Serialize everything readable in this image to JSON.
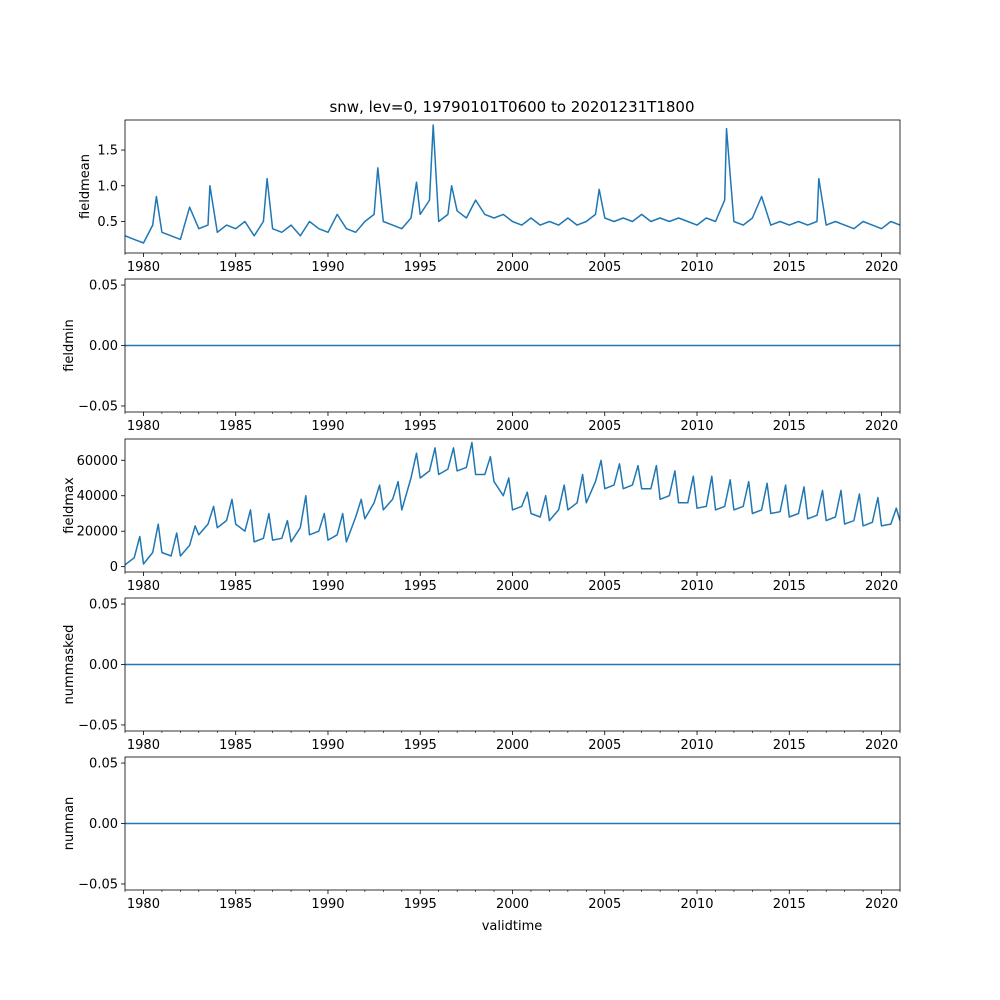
{
  "figure": {
    "title": "snw, lev=0, 19790101T0600 to 20201231T1800",
    "xlabel": "validtime",
    "line_color": "#1f77b4"
  },
  "chart_data": [
    {
      "type": "line",
      "name": "fieldmean",
      "ylabel": "fieldmean",
      "xlim": [
        1979.0,
        2021.0
      ],
      "ylim": [
        0.06,
        1.92
      ],
      "x_ticks": [
        "1980",
        "1985",
        "1990",
        "1995",
        "2000",
        "2005",
        "2010",
        "2015",
        "2020"
      ],
      "y_ticks": [
        "0.5",
        "1.0",
        "1.5"
      ],
      "x": [
        1979.0,
        1979.5,
        1980.0,
        1980.5,
        1980.7,
        1981.0,
        1981.5,
        1982.0,
        1982.5,
        1983.0,
        1983.5,
        1983.6,
        1984.0,
        1984.5,
        1985.0,
        1985.5,
        1986.0,
        1986.5,
        1986.7,
        1987.0,
        1987.5,
        1988.0,
        1988.5,
        1989.0,
        1989.5,
        1990.0,
        1990.5,
        1991.0,
        1991.5,
        1992.0,
        1992.5,
        1992.7,
        1993.0,
        1993.5,
        1994.0,
        1994.5,
        1994.8,
        1995.0,
        1995.5,
        1995.7,
        1996.0,
        1996.5,
        1996.7,
        1997.0,
        1997.5,
        1998.0,
        1998.5,
        1999.0,
        1999.5,
        2000.0,
        2000.5,
        2001.0,
        2001.5,
        2002.0,
        2002.5,
        2003.0,
        2003.5,
        2004.0,
        2004.5,
        2004.7,
        2005.0,
        2005.5,
        2006.0,
        2006.5,
        2007.0,
        2007.5,
        2008.0,
        2008.5,
        2009.0,
        2009.5,
        2010.0,
        2010.5,
        2011.0,
        2011.5,
        2011.6,
        2012.0,
        2012.5,
        2013.0,
        2013.5,
        2014.0,
        2014.5,
        2015.0,
        2015.5,
        2016.0,
        2016.5,
        2016.6,
        2017.0,
        2017.5,
        2018.0,
        2018.5,
        2019.0,
        2019.5,
        2020.0,
        2020.5,
        2021.0
      ],
      "values": [
        0.3,
        0.25,
        0.2,
        0.45,
        0.85,
        0.35,
        0.3,
        0.25,
        0.7,
        0.4,
        0.45,
        1.0,
        0.35,
        0.45,
        0.4,
        0.5,
        0.3,
        0.5,
        1.1,
        0.4,
        0.35,
        0.45,
        0.3,
        0.5,
        0.4,
        0.35,
        0.6,
        0.4,
        0.35,
        0.5,
        0.6,
        1.25,
        0.5,
        0.45,
        0.4,
        0.55,
        1.05,
        0.6,
        0.8,
        1.85,
        0.5,
        0.6,
        1.0,
        0.65,
        0.55,
        0.8,
        0.6,
        0.55,
        0.6,
        0.5,
        0.45,
        0.55,
        0.45,
        0.5,
        0.45,
        0.55,
        0.45,
        0.5,
        0.6,
        0.95,
        0.55,
        0.5,
        0.55,
        0.5,
        0.6,
        0.5,
        0.55,
        0.5,
        0.55,
        0.5,
        0.45,
        0.55,
        0.5,
        0.8,
        1.8,
        0.5,
        0.45,
        0.55,
        0.85,
        0.45,
        0.5,
        0.45,
        0.5,
        0.45,
        0.5,
        1.1,
        0.45,
        0.5,
        0.45,
        0.4,
        0.5,
        0.45,
        0.4,
        0.5,
        0.45
      ]
    },
    {
      "type": "line",
      "name": "fieldmin",
      "ylabel": "fieldmin",
      "xlim": [
        1979.0,
        2021.0
      ],
      "ylim": [
        -0.055,
        0.055
      ],
      "x_ticks": [
        "1980",
        "1985",
        "1990",
        "1995",
        "2000",
        "2005",
        "2010",
        "2015",
        "2020"
      ],
      "y_ticks": [
        "−0.05",
        "0.00",
        "0.05"
      ],
      "x": [
        1979.0,
        2021.0
      ],
      "values": [
        0,
        0
      ]
    },
    {
      "type": "line",
      "name": "fieldmax",
      "ylabel": "fieldmax",
      "xlim": [
        1979.0,
        2021.0
      ],
      "ylim": [
        -3000,
        72000
      ],
      "x_ticks": [
        "1980",
        "1985",
        "1990",
        "1995",
        "2000",
        "2005",
        "2010",
        "2015",
        "2020"
      ],
      "y_ticks": [
        "0",
        "20000",
        "40000",
        "60000"
      ],
      "x": [
        1979.0,
        1979.5,
        1979.8,
        1980.0,
        1980.5,
        1980.8,
        1981.0,
        1981.5,
        1981.8,
        1982.0,
        1982.5,
        1982.8,
        1983.0,
        1983.5,
        1983.8,
        1984.0,
        1984.5,
        1984.8,
        1985.0,
        1985.5,
        1985.8,
        1986.0,
        1986.5,
        1986.8,
        1987.0,
        1987.5,
        1987.8,
        1988.0,
        1988.5,
        1988.8,
        1989.0,
        1989.5,
        1989.8,
        1990.0,
        1990.5,
        1990.8,
        1991.0,
        1991.5,
        1991.8,
        1992.0,
        1992.5,
        1992.8,
        1993.0,
        1993.5,
        1993.8,
        1994.0,
        1994.5,
        1994.8,
        1995.0,
        1995.5,
        1995.8,
        1996.0,
        1996.5,
        1996.8,
        1997.0,
        1997.5,
        1997.8,
        1998.0,
        1998.5,
        1998.8,
        1999.0,
        1999.5,
        1999.8,
        2000.0,
        2000.5,
        2000.8,
        2001.0,
        2001.5,
        2001.8,
        2002.0,
        2002.5,
        2002.8,
        2003.0,
        2003.5,
        2003.8,
        2004.0,
        2004.5,
        2004.8,
        2005.0,
        2005.5,
        2005.8,
        2006.0,
        2006.5,
        2006.8,
        2007.0,
        2007.5,
        2007.8,
        2008.0,
        2008.5,
        2008.8,
        2009.0,
        2009.5,
        2009.8,
        2010.0,
        2010.5,
        2010.8,
        2011.0,
        2011.5,
        2011.8,
        2012.0,
        2012.5,
        2012.8,
        2013.0,
        2013.5,
        2013.8,
        2014.0,
        2014.5,
        2014.8,
        2015.0,
        2015.5,
        2015.8,
        2016.0,
        2016.5,
        2016.8,
        2017.0,
        2017.5,
        2017.8,
        2018.0,
        2018.5,
        2018.8,
        2019.0,
        2019.5,
        2019.8,
        2020.0,
        2020.5,
        2020.8,
        2021.0
      ],
      "values": [
        1000,
        5000,
        17000,
        1500,
        8000,
        24000,
        8000,
        6000,
        19000,
        6000,
        12000,
        23000,
        18000,
        24000,
        34000,
        22000,
        26000,
        38000,
        24000,
        20000,
        32000,
        14000,
        16000,
        30000,
        15000,
        16000,
        26000,
        14000,
        22000,
        40000,
        18000,
        20000,
        30000,
        15000,
        18000,
        30000,
        14000,
        28000,
        38000,
        27000,
        36000,
        46000,
        32000,
        38000,
        48000,
        32000,
        50000,
        64000,
        50000,
        54000,
        67000,
        52000,
        55000,
        67000,
        54000,
        56000,
        70000,
        52000,
        52000,
        62000,
        48000,
        40000,
        50000,
        32000,
        34000,
        42000,
        30000,
        28000,
        40000,
        26000,
        32000,
        46000,
        32000,
        36000,
        52000,
        36000,
        48000,
        60000,
        44000,
        46000,
        58000,
        44000,
        46000,
        57000,
        44000,
        44000,
        57000,
        38000,
        40000,
        54000,
        36000,
        36000,
        51000,
        33000,
        34000,
        51000,
        32000,
        34000,
        49000,
        32000,
        34000,
        48000,
        30000,
        32000,
        47000,
        30000,
        31000,
        46000,
        28000,
        30000,
        45000,
        27000,
        29000,
        43000,
        26000,
        28000,
        43000,
        24000,
        26000,
        41000,
        23000,
        25000,
        39000,
        23000,
        24000,
        33000,
        26000
      ]
    },
    {
      "type": "line",
      "name": "nummasked",
      "ylabel": "nummasked",
      "xlim": [
        1979.0,
        2021.0
      ],
      "ylim": [
        -0.055,
        0.055
      ],
      "x_ticks": [
        "1980",
        "1985",
        "1990",
        "1995",
        "2000",
        "2005",
        "2010",
        "2015",
        "2020"
      ],
      "y_ticks": [
        "−0.05",
        "0.00",
        "0.05"
      ],
      "x": [
        1979.0,
        2021.0
      ],
      "values": [
        0,
        0
      ]
    },
    {
      "type": "line",
      "name": "numnan",
      "ylabel": "numnan",
      "xlim": [
        1979.0,
        2021.0
      ],
      "ylim": [
        -0.055,
        0.055
      ],
      "x_ticks": [
        "1980",
        "1985",
        "1990",
        "1995",
        "2000",
        "2005",
        "2010",
        "2015",
        "2020"
      ],
      "y_ticks": [
        "−0.05",
        "0.00",
        "0.05"
      ],
      "x": [
        1979.0,
        2021.0
      ],
      "values": [
        0,
        0
      ]
    }
  ]
}
